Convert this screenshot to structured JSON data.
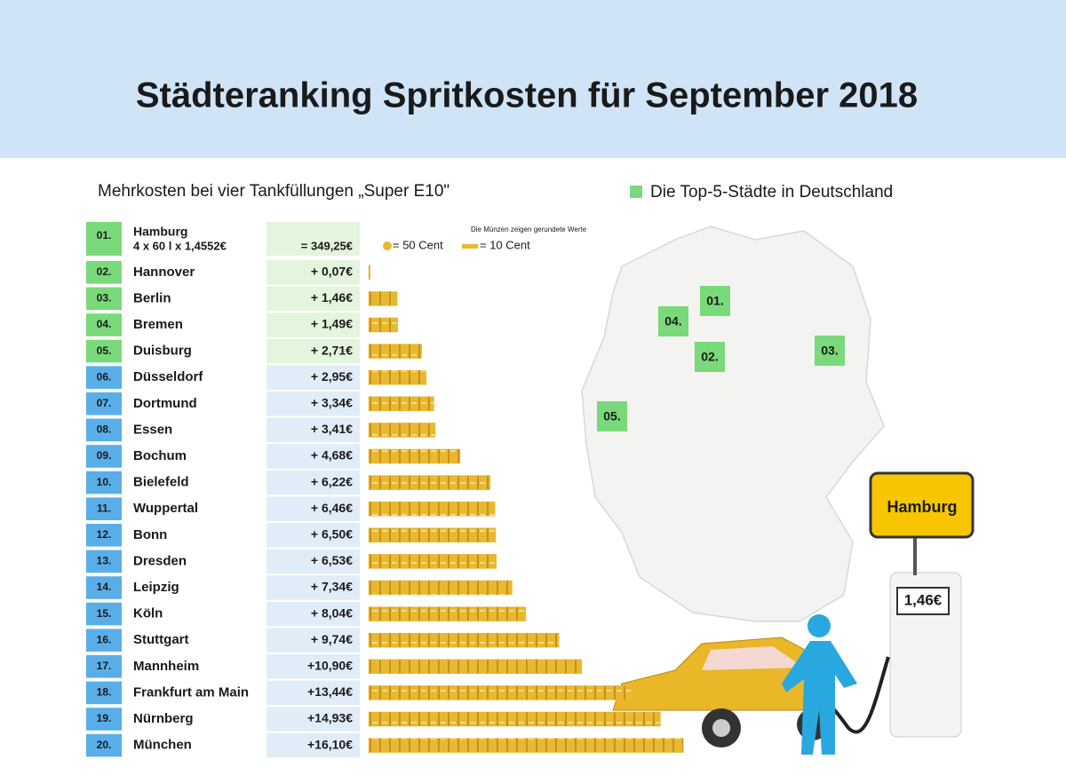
{
  "chart_data": {
    "type": "bar",
    "orientation": "horizontal",
    "title": "Städteranking Spritkosten für September 2018",
    "subtitle": "Mehrkosten bei vier Tankfüllungen „Super E10\"",
    "legend_label": "Die Top-5-Städte in Deutschland",
    "coin_note": "Die Münzen zeigen gerundete Werte",
    "coin_50": "= 50 Cent",
    "coin_10": "= 10 Cent",
    "ranks": [
      "01.",
      "02.",
      "03.",
      "04.",
      "05.",
      "06.",
      "07.",
      "08.",
      "09.",
      "10.",
      "11.",
      "12.",
      "13.",
      "14.",
      "15.",
      "16.",
      "17.",
      "18.",
      "19.",
      "20."
    ],
    "baseline": {
      "city": "Hamburg",
      "formula": "4 x 60 l x 1,4552€",
      "label": "= 349,25€"
    },
    "categories": [
      "Hannover",
      "Berlin",
      "Bremen",
      "Duisburg",
      "Düsseldorf",
      "Dortmund",
      "Essen",
      "Bochum",
      "Bielefeld",
      "Wuppertal",
      "Bonn",
      "Dresden",
      "Leipzig",
      "Köln",
      "Stuttgart",
      "Mannheim",
      "Frankfurt am Main",
      "Nürnberg",
      "München"
    ],
    "values": [
      0.07,
      1.46,
      1.49,
      2.71,
      2.95,
      3.34,
      3.41,
      4.68,
      6.22,
      6.46,
      6.5,
      6.53,
      7.34,
      8.04,
      9.74,
      10.9,
      13.44,
      14.93,
      16.1
    ],
    "value_labels": [
      "+ 0,07€",
      "+ 1,46€",
      "+ 1,49€",
      "+ 2,71€",
      "+ 2,95€",
      "+ 3,34€",
      "+ 3,41€",
      "+ 4,68€",
      "+ 6,22€",
      "+ 6,46€",
      "+ 6,50€",
      "+ 6,53€",
      "+ 7,34€",
      "+ 8,04€",
      "+ 9,74€",
      "+10,90€",
      "+13,44€",
      "+14,93€",
      "+16,10€"
    ],
    "color": "#e8b830",
    "xlim": [
      0,
      20
    ],
    "map_labels": [
      "01.",
      "02.",
      "03.",
      "04.",
      "05."
    ],
    "sign_label": "Hamburg",
    "pump_label": "1,46€",
    "highlight_color": "#7ad97a",
    "other_color": "#5aaee8"
  }
}
